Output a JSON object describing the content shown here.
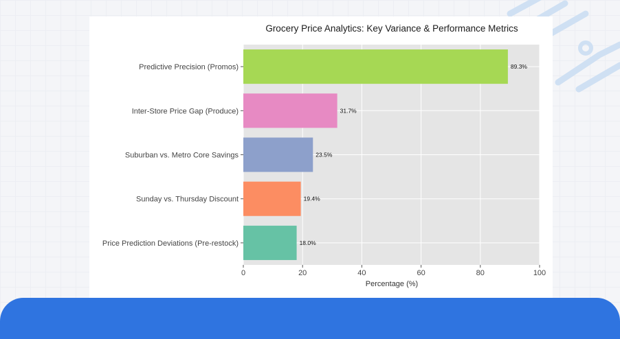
{
  "chart_data": {
    "type": "bar",
    "orientation": "horizontal",
    "title": "Grocery Price Analytics: Key Variance & Performance Metrics",
    "xlabel": "Percentage (%)",
    "ylabel": "",
    "xlim": [
      0,
      100
    ],
    "xticks": [
      0,
      20,
      40,
      60,
      80,
      100
    ],
    "grid": true,
    "categories": [
      "Predictive Precision (Promos)",
      "Inter-Store Price Gap (Produce)",
      "Suburban vs. Metro Core Savings",
      "Sunday vs. Thursday Discount",
      "Price Prediction Deviations (Pre-restock)"
    ],
    "values": [
      89.3,
      31.7,
      23.5,
      19.4,
      18.0
    ],
    "value_labels": [
      "89.3%",
      "31.7%",
      "23.5%",
      "19.4%",
      "18.0%"
    ],
    "colors": [
      "#a6d854",
      "#e78ac3",
      "#8da0cb",
      "#fc8d62",
      "#66c2a5"
    ]
  },
  "theme": {
    "plot_background": "#e5e5e5",
    "bottom_band": "#2f74e0",
    "decor_lines": "#cfe0f3"
  }
}
